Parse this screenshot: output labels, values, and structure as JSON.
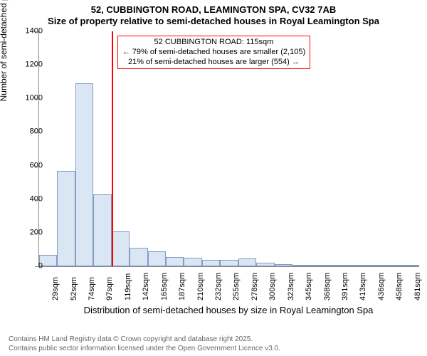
{
  "title_line1": "52, CUBBINGTON ROAD, LEAMINGTON SPA, CV32 7AB",
  "title_line2": "Size of property relative to semi-detached houses in Royal Leamington Spa",
  "y_axis_label": "Number of semi-detached properties",
  "x_axis_label": "Distribution of semi-detached houses by size in Royal Leamington Spa",
  "footer_line1": "Contains HM Land Registry data © Crown copyright and database right 2025.",
  "footer_line2": "Contains public sector information licensed under the Open Government Licence v3.0.",
  "chart": {
    "type": "histogram",
    "ylim": [
      0,
      1400
    ],
    "ytick_step": 200,
    "yticks": [
      0,
      200,
      400,
      600,
      800,
      1000,
      1200,
      1400
    ],
    "categories": [
      "29sqm",
      "52sqm",
      "74sqm",
      "97sqm",
      "119sqm",
      "142sqm",
      "165sqm",
      "187sqm",
      "210sqm",
      "232sqm",
      "255sqm",
      "278sqm",
      "300sqm",
      "323sqm",
      "345sqm",
      "368sqm",
      "391sqm",
      "413sqm",
      "436sqm",
      "458sqm",
      "481sqm"
    ],
    "values": [
      70,
      570,
      1090,
      430,
      210,
      110,
      90,
      55,
      50,
      40,
      40,
      45,
      22,
      12,
      6,
      4,
      3,
      2,
      2,
      2,
      1
    ],
    "bar_fill": "#dbe6f4",
    "bar_border": "#7f9cc6",
    "bar_width_ratio": 1.0,
    "background_color": "#ffffff",
    "axis_color": "#888888",
    "tick_fontsize": 11,
    "label_fontsize": 12,
    "title_fontsize": 13,
    "reference": {
      "line_color": "#ff0000",
      "box_border_color": "#ff0000",
      "line1": "52 CUBBINGTON ROAD: 115sqm",
      "line2": "← 79% of semi-detached houses are smaller (2,105)",
      "line3": "21% of semi-detached houses are larger (554) →",
      "at_category_index": 4
    }
  }
}
